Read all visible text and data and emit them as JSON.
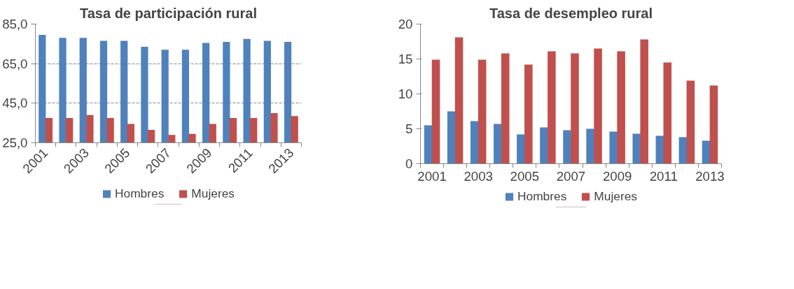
{
  "chart_data": [
    {
      "type": "bar",
      "title": "Tasa de participación rural",
      "categories": [
        "2001",
        null,
        "2003",
        null,
        "2005",
        null,
        "2007",
        null,
        "2009",
        null,
        "2011",
        null,
        "2013"
      ],
      "series": [
        {
          "name": "Hombres",
          "color": "#4f81bd",
          "values": [
            79.5,
            78,
            78,
            76.5,
            76.5,
            73.5,
            72,
            72,
            75.5,
            76,
            77.5,
            76.5,
            76
          ]
        },
        {
          "name": "Mujeres",
          "color": "#c0504d",
          "values": [
            37.5,
            37.5,
            39,
            37.5,
            34.5,
            31.5,
            29,
            29.5,
            34.5,
            37.5,
            37.5,
            40,
            38.5
          ]
        }
      ],
      "ylim": [
        25,
        85
      ],
      "yticks": [
        {
          "value": 25,
          "label": "25,0"
        },
        {
          "value": 45,
          "label": "45,0"
        },
        {
          "value": 65,
          "label": "65,0"
        },
        {
          "value": 85,
          "label": "85,0"
        }
      ],
      "grid": "y",
      "legend": "bottom"
    },
    {
      "type": "bar",
      "title": "Tasa de desempleo rural",
      "categories": [
        "2001",
        null,
        "2003",
        null,
        "2005",
        null,
        "2007",
        null,
        "2009",
        null,
        "2011",
        null,
        "2013"
      ],
      "series": [
        {
          "name": "Hombres",
          "color": "#4f81bd",
          "values": [
            5.5,
            7.5,
            6.1,
            5.7,
            4.2,
            5.2,
            4.8,
            5.0,
            4.6,
            4.3,
            4.0,
            3.8,
            3.3
          ]
        },
        {
          "name": "Mujeres",
          "color": "#c0504d",
          "values": [
            14.9,
            18.1,
            14.9,
            15.8,
            14.2,
            16.1,
            15.8,
            16.5,
            16.1,
            17.8,
            14.5,
            11.9,
            11.2
          ]
        }
      ],
      "ylim": [
        0,
        20
      ],
      "yticks": [
        0,
        5,
        10,
        15,
        20
      ],
      "grid": false,
      "legend": "bottom"
    }
  ]
}
